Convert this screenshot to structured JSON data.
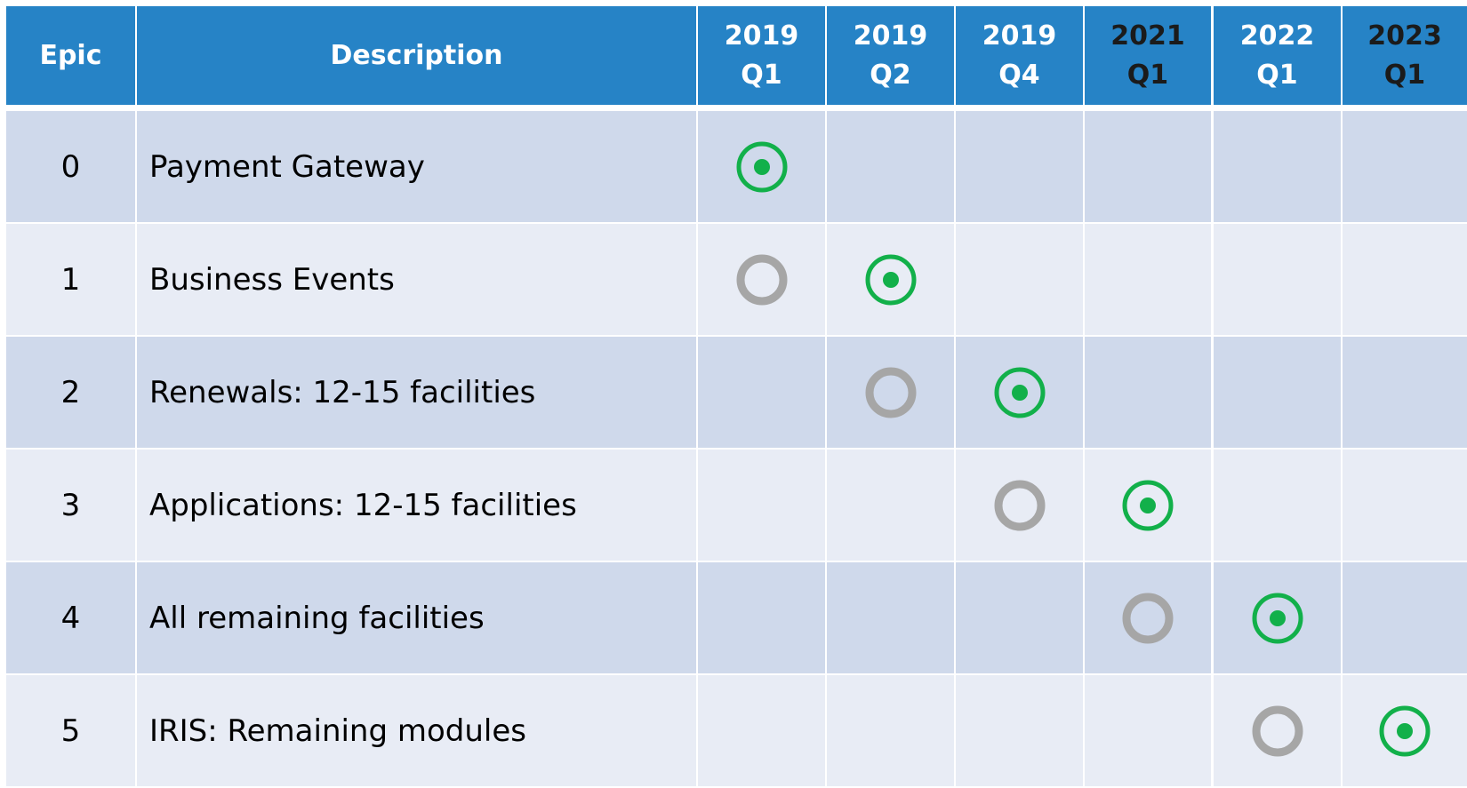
{
  "header": {
    "epic": "Epic",
    "description": "Description",
    "periods": [
      {
        "year": "2019",
        "quarter": "Q1"
      },
      {
        "year": "2019",
        "quarter": "Q2"
      },
      {
        "year": "2019",
        "quarter": "Q4"
      },
      {
        "year": "2021",
        "quarter": "Q1"
      },
      {
        "year": "2022",
        "quarter": "Q1"
      },
      {
        "year": "2023",
        "quarter": "Q1"
      }
    ]
  },
  "rows": [
    {
      "epic": 0,
      "description": "Payment Gateway"
    },
    {
      "epic": 1,
      "description": "Business Events"
    },
    {
      "epic": 2,
      "description": "Renewals: 12-15 facilities"
    },
    {
      "epic": 3,
      "description": "Applications: 12-15 facilities"
    },
    {
      "epic": 4,
      "description": "All remaining facilities"
    },
    {
      "epic": 5,
      "description": "IRIS: Remaining modules"
    }
  ]
}
